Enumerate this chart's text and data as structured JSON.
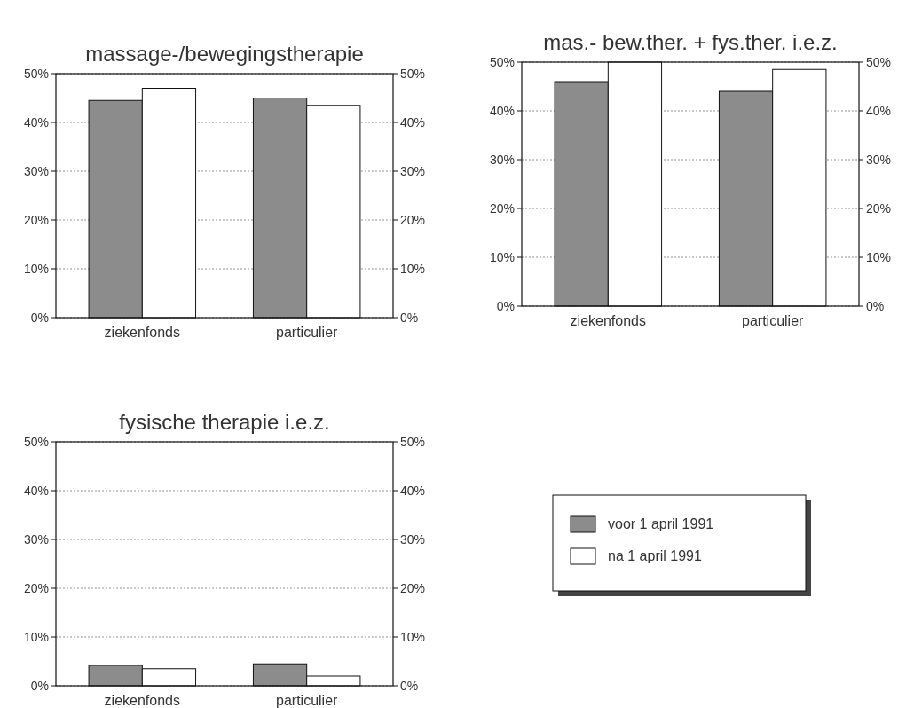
{
  "chart_data": [
    {
      "type": "bar",
      "title": "massage-/bewegingstherapie",
      "categories": [
        "ziekenfonds",
        "particulier"
      ],
      "series": [
        {
          "color": "#8c8c8c",
          "values": [
            44.5,
            45
          ]
        },
        {
          "color": "#ffffff",
          "values": [
            47,
            43.5
          ]
        }
      ],
      "ylim": [
        0,
        50
      ],
      "yticks": [
        {
          "value": 0,
          "label": "0%"
        },
        {
          "value": 10,
          "label": "10%"
        },
        {
          "value": 20,
          "label": "20%"
        },
        {
          "value": 30,
          "label": "30%"
        },
        {
          "value": 40,
          "label": "40%"
        },
        {
          "value": 50,
          "label": "50%"
        }
      ],
      "y2lim": [
        0,
        50
      ],
      "y2ticks": [
        {
          "value": 0,
          "label": "0%"
        },
        {
          "value": 10,
          "label": "10%"
        },
        {
          "value": 20,
          "label": "20%"
        },
        {
          "value": 30,
          "label": "30%"
        },
        {
          "value": 40,
          "label": "40%"
        },
        {
          "value": 50,
          "label": "50%"
        }
      ],
      "grid": "y"
    },
    {
      "type": "bar",
      "title": "mas.- bew.ther. + fys.ther. i.e.z.",
      "categories": [
        "ziekenfonds",
        "particulier"
      ],
      "series": [
        {
          "color": "#8c8c8c",
          "values": [
            46,
            44
          ]
        },
        {
          "color": "#ffffff",
          "values": [
            50,
            48.5
          ]
        }
      ],
      "ylim": [
        0,
        50
      ],
      "yticks": [
        {
          "value": 0,
          "label": "0%"
        },
        {
          "value": 10,
          "label": "10%"
        },
        {
          "value": 20,
          "label": "20%"
        },
        {
          "value": 30,
          "label": "30%"
        },
        {
          "value": 40,
          "label": "40%"
        },
        {
          "value": 50,
          "label": "50%"
        }
      ],
      "y2lim": [
        0,
        50
      ],
      "y2ticks": [
        {
          "value": 0,
          "label": "0%"
        },
        {
          "value": 10,
          "label": "10%"
        },
        {
          "value": 20,
          "label": "20%"
        },
        {
          "value": 30,
          "label": "30%"
        },
        {
          "value": 40,
          "label": "40%"
        },
        {
          "value": 50,
          "label": "50%"
        }
      ],
      "grid": "y"
    },
    {
      "type": "bar",
      "title": "fysische therapie i.e.z.",
      "categories": [
        "ziekenfonds",
        "particulier"
      ],
      "series": [
        {
          "name": "voor 1 april 1991",
          "color": "#8c8c8c",
          "values": [
            4.2,
            4.5
          ]
        },
        {
          "name": "na 1 april 1991",
          "color": "#ffffff",
          "values": [
            3.5,
            2
          ]
        }
      ],
      "ylim": [
        0,
        50
      ],
      "yticks": [
        {
          "value": 0,
          "label": "0%"
        },
        {
          "value": 10,
          "label": "10%"
        },
        {
          "value": 20,
          "label": "20%"
        },
        {
          "value": 30,
          "label": "30%"
        },
        {
          "value": 40,
          "label": "40%"
        },
        {
          "value": 50,
          "label": "50%"
        }
      ],
      "y2lim": [
        0,
        50
      ],
      "y2ticks": [
        {
          "value": 0,
          "label": "0%"
        },
        {
          "value": 10,
          "label": "10%"
        },
        {
          "value": 20,
          "label": "20%"
        },
        {
          "value": 30,
          "label": "30%"
        },
        {
          "value": 40,
          "label": "40%"
        },
        {
          "value": 50,
          "label": "50%"
        }
      ],
      "grid": "y",
      "legend": "right"
    }
  ]
}
